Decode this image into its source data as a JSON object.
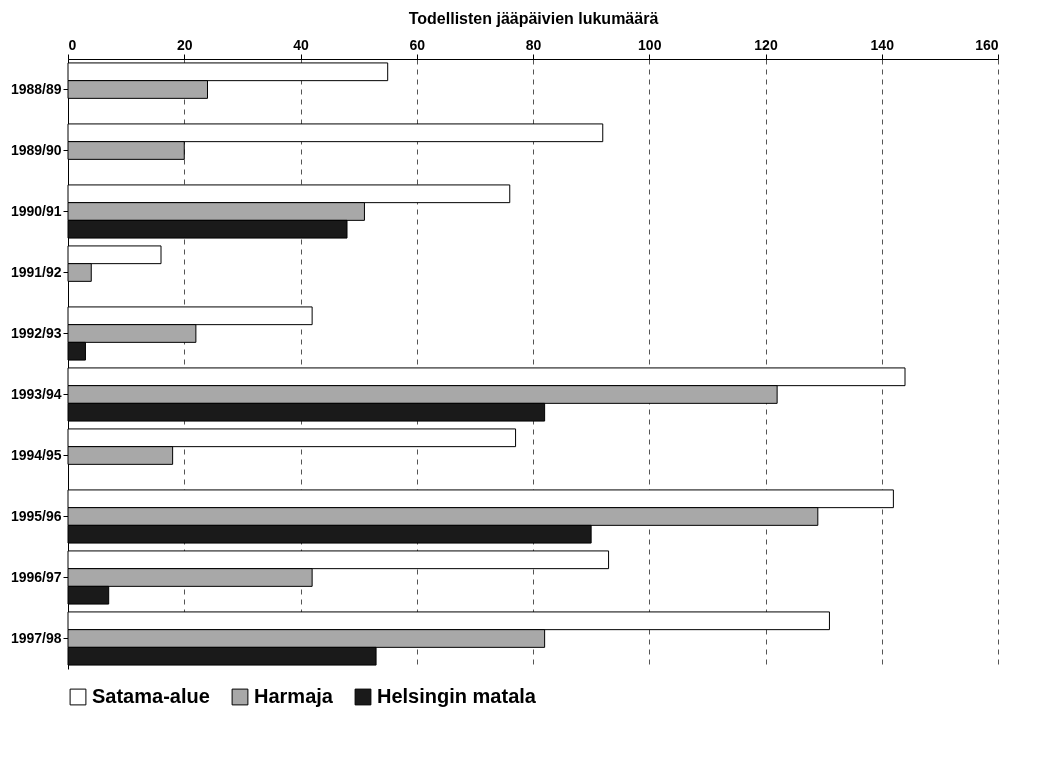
{
  "chart_data": {
    "type": "bar",
    "orientation": "horizontal",
    "xlabel": "Todellisten jääpäivien lukumäärä",
    "categories": [
      "1988/89",
      "1989/90",
      "1990/91",
      "1991/92",
      "1992/93",
      "1993/94",
      "1994/95",
      "1995/96",
      "1996/97",
      "1997/98"
    ],
    "series": [
      {
        "name": "Satama-alue",
        "color": "#ffffff",
        "values": [
          55,
          92,
          76,
          16,
          42,
          144,
          77,
          142,
          93,
          131
        ]
      },
      {
        "name": "Harmaja",
        "color": "#a8a8a8",
        "values": [
          24,
          20,
          51,
          4,
          22,
          122,
          18,
          129,
          42,
          82
        ]
      },
      {
        "name": "Helsingin matala",
        "color": "#1a1a1a",
        "values": [
          null,
          null,
          48,
          null,
          3,
          82,
          null,
          90,
          7,
          53
        ]
      }
    ],
    "xlim": [
      0,
      160
    ],
    "xticks": [
      0,
      20,
      40,
      60,
      80,
      100,
      120,
      140,
      160
    ],
    "grid": "x",
    "legend": "bottom"
  }
}
